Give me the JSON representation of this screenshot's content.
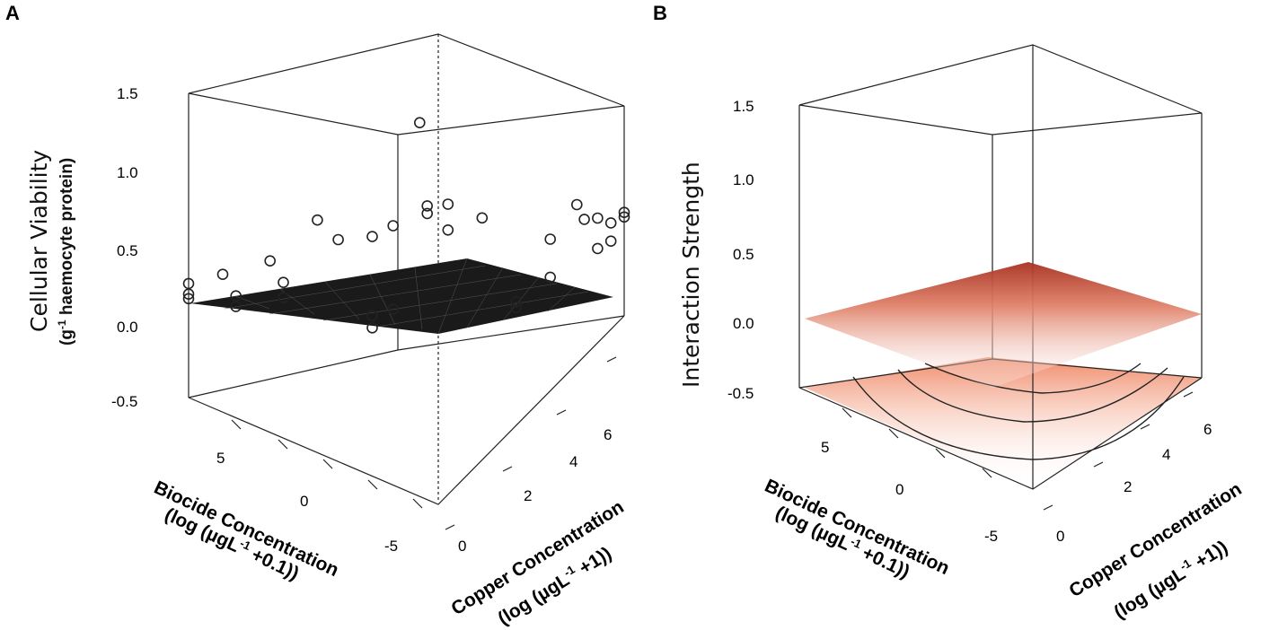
{
  "panels": [
    {
      "letter": "A",
      "ytitle": "Cellular Viability",
      "ysub_prefix": "(g",
      "ysub_sup": "-1",
      "ysub_rest": " haemocyte protein)",
      "z_ticks": [
        "1.5",
        "1.0",
        "0.5",
        "0.0",
        "-0.5"
      ],
      "biocide_ticks": [
        "5",
        "0",
        "-5"
      ],
      "copper_ticks": [
        "0",
        "2",
        "4",
        "6"
      ],
      "biocide_label_1": "Biocide Concentration",
      "biocide_label_2a": "(log (µgL",
      "biocide_label_2sup": "-1",
      "biocide_label_2b": " +0.1))",
      "copper_label_1": "Copper Concentration",
      "copper_label_2a": "(log (µgL",
      "copper_label_2sup": "-1",
      "copper_label_2b": " +1))"
    },
    {
      "letter": "B",
      "ytitle": "Interaction Strength",
      "z_ticks": [
        "1.5",
        "1.0",
        "0.5",
        "0.0",
        "-0.5"
      ],
      "biocide_ticks": [
        "5",
        "0",
        "-5"
      ],
      "copper_ticks": [
        "0",
        "2",
        "4",
        "6"
      ],
      "biocide_label_1": "Biocide Concentration",
      "biocide_label_2a": "(log (µgL",
      "biocide_label_2sup": "-1",
      "biocide_label_2b": " +0.1))",
      "copper_label_1": "Copper Concentration",
      "copper_label_2a": "(log (µgL",
      "copper_label_2sup": "-1",
      "copper_label_2b": " +1))"
    }
  ],
  "colors": {
    "surface_a": "#1a1a1a",
    "surface_b_peak": "#a83020",
    "surface_b_low": "#ffffff",
    "floor_b": "#f4b8a0"
  },
  "chart_data": [
    {
      "type": "scatter",
      "panel": "A",
      "title": "",
      "zlabel": "Cellular Viability (g-1 haemocyte protein)",
      "xlabel": "Biocide Concentration (log (µgL-1 +0.1))",
      "ylabel": "Copper Concentration (log (µgL-1 +1))",
      "zlim": [
        -0.5,
        1.5
      ],
      "xlim": [
        -5,
        7
      ],
      "ylim": [
        0,
        7
      ],
      "surface": "fitted linear plane",
      "points": [
        {
          "biocide": 7,
          "copper": 0,
          "z": 0.25
        },
        {
          "biocide": 7,
          "copper": 0,
          "z": 0.18
        },
        {
          "biocide": 7,
          "copper": 0,
          "z": 0.15
        },
        {
          "biocide": 6,
          "copper": 0.5,
          "z": 0.28
        },
        {
          "biocide": 6,
          "copper": 1,
          "z": 0.05
        },
        {
          "biocide": 6,
          "copper": 1,
          "z": -0.02
        },
        {
          "biocide": 5,
          "copper": 1.5,
          "z": 0.25
        },
        {
          "biocide": 5,
          "copper": 2,
          "z": 0.02
        },
        {
          "biocide": 5,
          "copper": 2,
          "z": -0.08
        },
        {
          "biocide": 4,
          "copper": 2.5,
          "z": 0.4
        },
        {
          "biocide": 3,
          "copper": 2.5,
          "z": 0.33
        },
        {
          "biocide": 2,
          "copper": 3,
          "z": 0.32
        },
        {
          "biocide": 1,
          "copper": 3,
          "z": 0.45
        },
        {
          "biocide": 0,
          "copper": 3.5,
          "z": 0.5
        },
        {
          "biocide": 0,
          "copper": 3.5,
          "z": 0.55
        },
        {
          "biocide": -1,
          "copper": 3.5,
          "z": 0.62
        },
        {
          "biocide": -1,
          "copper": 3.5,
          "z": 0.45
        },
        {
          "biocide": 1,
          "copper": 4,
          "z": 0.95
        },
        {
          "biocide": 2,
          "copper": 3,
          "z": -0.2
        },
        {
          "biocide": 2,
          "copper": 3,
          "z": -0.28
        },
        {
          "biocide": 1,
          "copper": 3,
          "z": -0.1
        },
        {
          "biocide": -2,
          "copper": 4,
          "z": 0.5
        },
        {
          "biocide": -3,
          "copper": 4.5,
          "z": -0.12
        },
        {
          "biocide": -3,
          "copper": 4.5,
          "z": -0.08
        },
        {
          "biocide": -4,
          "copper": 5,
          "z": 0.05
        },
        {
          "biocide": -4,
          "copper": 5,
          "z": 0.3
        },
        {
          "biocide": -5,
          "copper": 5.5,
          "z": 0.4
        },
        {
          "biocide": -5,
          "copper": 6,
          "z": 0.32
        },
        {
          "biocide": -5,
          "copper": 6,
          "z": 0.12
        },
        {
          "biocide": -5,
          "copper": 6.5,
          "z": 0.2
        },
        {
          "biocide": -5,
          "copper": 7,
          "z": 0.18
        },
        {
          "biocide": -5,
          "copper": 7,
          "z": 0.15
        },
        {
          "biocide": -5,
          "copper": 6.5,
          "z": 0.08
        },
        {
          "biocide": -4,
          "copper": 6,
          "z": 0.35
        }
      ]
    },
    {
      "type": "area",
      "panel": "B",
      "title": "",
      "zlabel": "Interaction Strength",
      "xlabel": "Biocide Concentration (log (µgL-1 +0.1))",
      "ylabel": "Copper Concentration (log (µgL-1 +1))",
      "zlim": [
        -0.5,
        1.5
      ],
      "xlim": [
        -5,
        7
      ],
      "ylim": [
        0,
        7
      ],
      "surface": "response surface with peak near 0.45 at back corner, projected contours on floor",
      "surface_peak": 0.45,
      "surface_min": 0.0
    }
  ]
}
